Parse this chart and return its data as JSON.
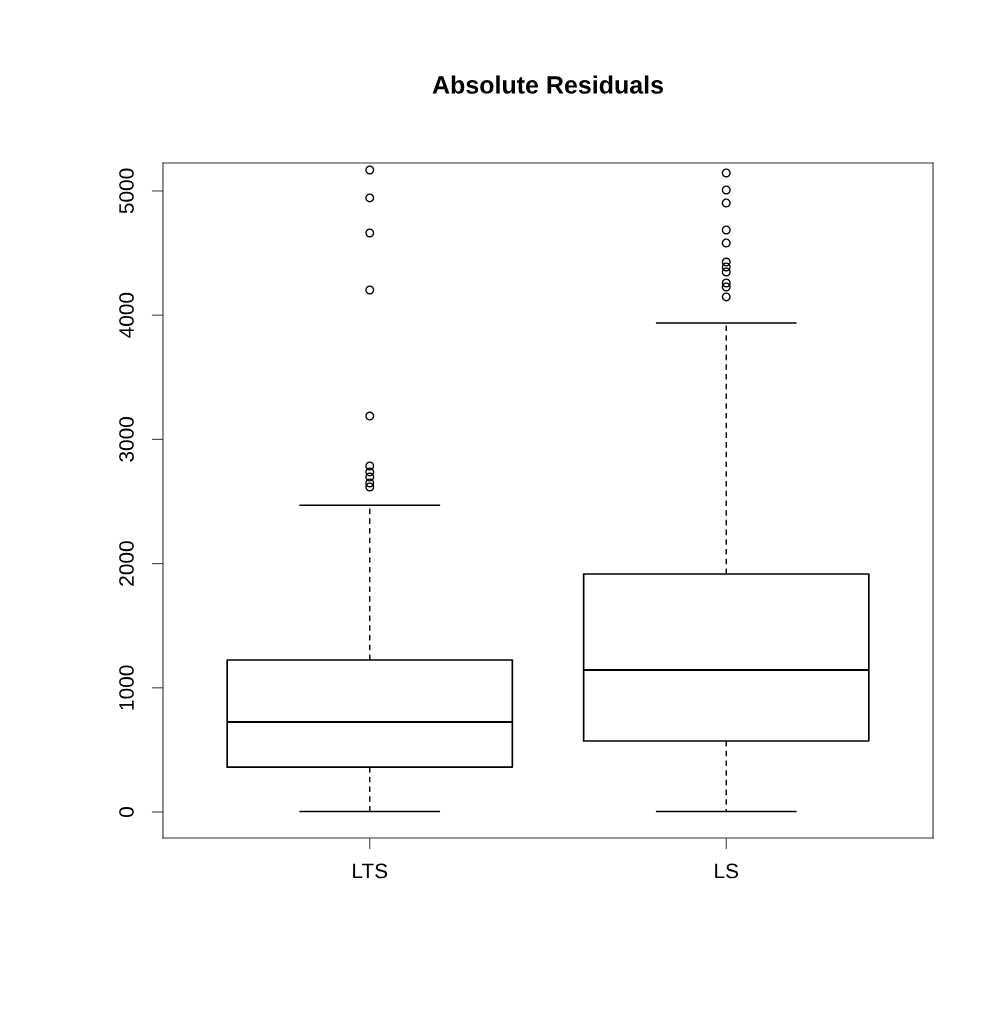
{
  "chart_data": {
    "type": "box",
    "title": "Absolute Residuals",
    "categories": [
      "LTS",
      "LS"
    ],
    "boxes": [
      {
        "low": 4,
        "q1": 362,
        "median": 725,
        "q3": 1224,
        "high": 2470,
        "outliers": [
          5169,
          4944,
          4662,
          4203,
          3188,
          2786,
          2738,
          2697,
          2649,
          2617
        ]
      },
      {
        "low": 4,
        "q1": 572,
        "median": 1143,
        "q3": 1916,
        "high": 3937,
        "outliers": [
          5145,
          5008,
          4903,
          4686,
          4581,
          4428,
          4388,
          4348,
          4259,
          4227,
          4147
        ]
      }
    ],
    "ylim": [
      -209,
      5225
    ],
    "yticks": [
      0,
      1000,
      2000,
      3000,
      4000,
      5000
    ],
    "grid": false,
    "marker": "circle"
  }
}
